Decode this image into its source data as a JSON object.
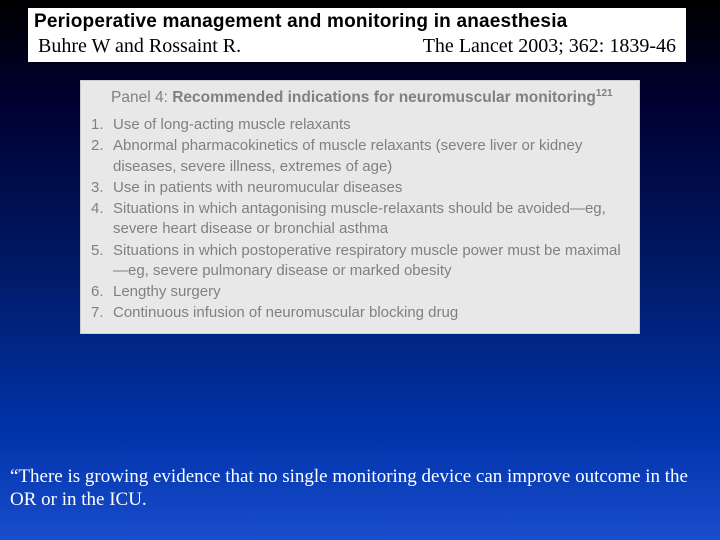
{
  "header": {
    "title": "Perioperative management and monitoring in anaesthesia",
    "authors": "Buhre W and Rossaint R.",
    "journal": "The Lancet 2003; 362: 1839-46"
  },
  "panel": {
    "label": "Panel 4: ",
    "title_bold": "Recommended indications for neuromuscular monitoring",
    "ref": "121",
    "items": [
      {
        "n": "1.",
        "t": "Use of long-acting muscle relaxants"
      },
      {
        "n": "2.",
        "t": "Abnormal pharmacokinetics of muscle relaxants (severe liver or kidney diseases, severe illness, extremes of age)"
      },
      {
        "n": "3.",
        "t": "Use in patients with neuromucular diseases"
      },
      {
        "n": "4.",
        "t": "Situations in which antagonising muscle-relaxants should be avoided—eg, severe heart disease or bronchial asthma"
      },
      {
        "n": "5.",
        "t": "Situations in which postoperative respiratory muscle power must be maximal—eg, severe pulmonary disease or marked obesity"
      },
      {
        "n": "6.",
        "t": "Lengthy surgery"
      },
      {
        "n": "7.",
        "t": "Continuous infusion of neuromuscular blocking drug"
      }
    ]
  },
  "footer": {
    "quote": "“There is growing evidence that no single monitoring device can improve outcome in the OR or in the ICU."
  },
  "colors": {
    "bg_top": "#000000",
    "bg_bottom": "#1a4dcc",
    "panel_bg": "#e8e8e8",
    "panel_text": "#808080",
    "white": "#ffffff"
  }
}
